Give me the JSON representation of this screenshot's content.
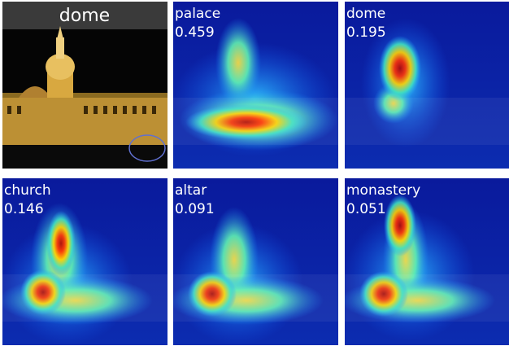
{
  "original": {
    "label": "dome"
  },
  "maps": [
    {
      "label": "palace",
      "score": 0.459
    },
    {
      "label": "dome",
      "score": 0.195
    },
    {
      "label": "church",
      "score": 0.146
    },
    {
      "label": "altar",
      "score": 0.091
    },
    {
      "label": "monastery",
      "score": 0.051
    }
  ]
}
